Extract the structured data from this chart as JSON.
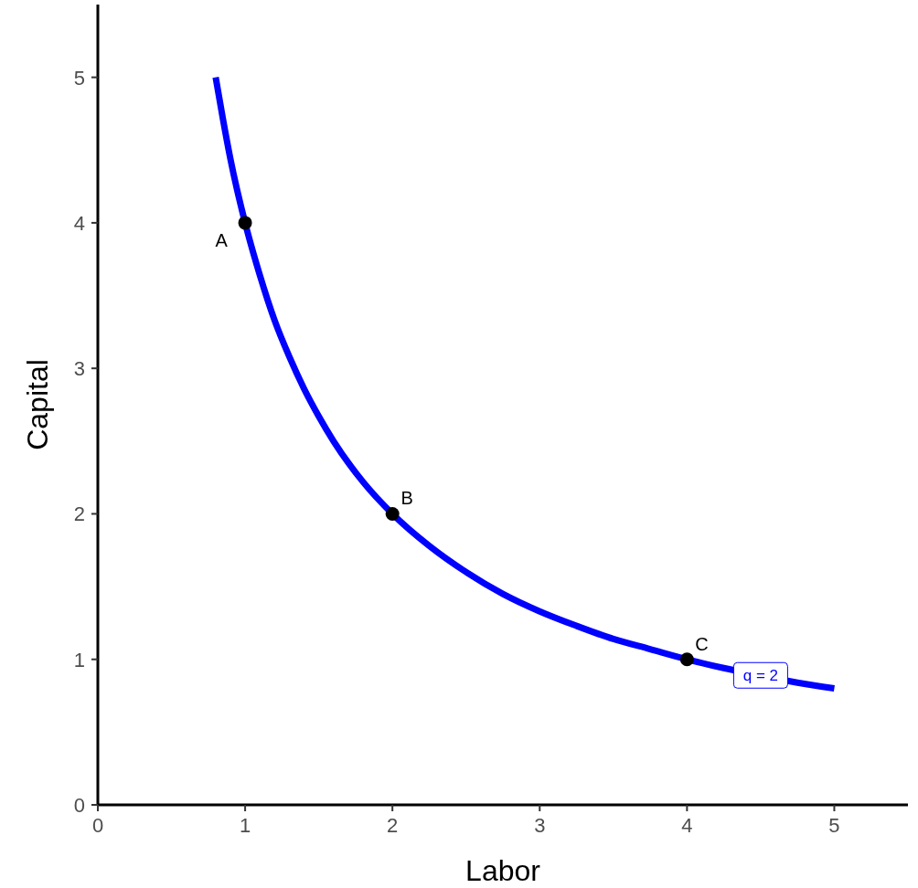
{
  "chart_data": {
    "type": "line",
    "xlabel": "Labor",
    "ylabel": "Capital",
    "xlim": [
      0,
      5.5
    ],
    "ylim": [
      0,
      5.5
    ],
    "xticks": [
      0,
      1,
      2,
      3,
      4,
      5
    ],
    "yticks": [
      0,
      1,
      2,
      3,
      4,
      5
    ],
    "grid": false,
    "series": [
      {
        "color": "#0000ff",
        "marker": "none",
        "x": [
          0.8,
          0.85,
          0.9,
          1,
          1.1,
          1.2,
          1.3,
          1.4,
          1.5,
          1.6,
          1.8,
          2,
          2.25,
          2.5,
          2.75,
          3,
          3.25,
          3.5,
          3.75,
          4,
          4.25,
          4.75,
          5
        ],
        "values": [
          5,
          4.71,
          4.44,
          4,
          3.64,
          3.33,
          3.08,
          2.86,
          2.67,
          2.5,
          2.22,
          2,
          1.78,
          1.6,
          1.45,
          1.33,
          1.23,
          1.14,
          1.07,
          1,
          0.94,
          0.84,
          0.8
        ]
      },
      {
        "type": "scatter",
        "color": "#000000",
        "marker": "circle",
        "x": [
          1,
          2,
          4
        ],
        "values": [
          4,
          2,
          1
        ],
        "value_labels": [
          "A",
          "B",
          "C"
        ]
      }
    ],
    "annotations": [
      {
        "text": "q = 2",
        "x": 4.5,
        "y": 0.89
      }
    ]
  }
}
